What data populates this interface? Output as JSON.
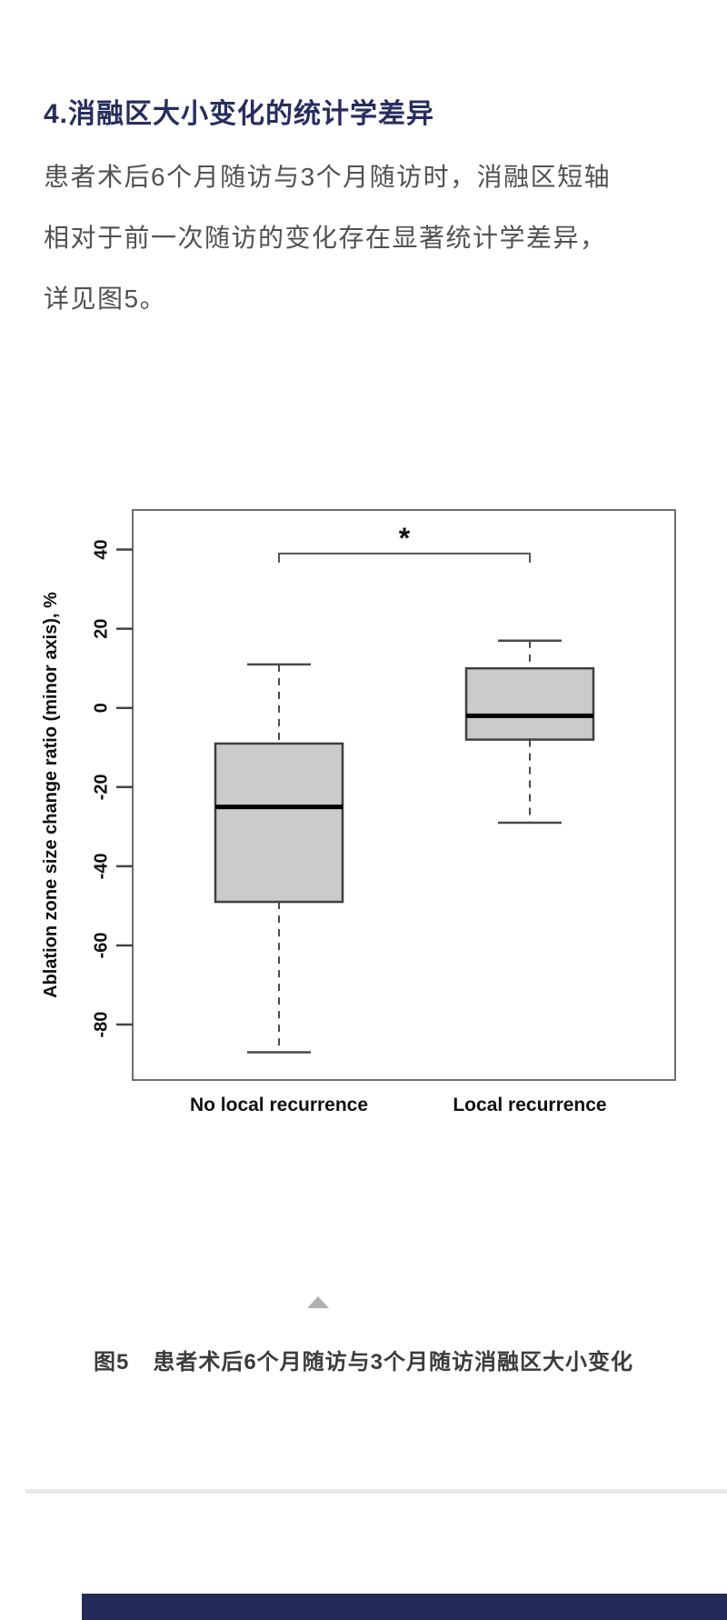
{
  "article": {
    "heading": "4.消融区大小变化的统计学差异",
    "paragraph_lines": [
      "患者术后6个月随访与3个月随访时，消融区短轴",
      "相对于前一次随访的变化存在显著统计学差异，",
      "详见图5。"
    ]
  },
  "figure": {
    "caption_label": "图5",
    "caption_text": "患者术后6个月随访与3个月随访消融区大小变化"
  },
  "icons": {
    "collapse_arrow": "triangle-up-icon"
  },
  "colors": {
    "accent_navy": "#272e5e",
    "body_text_gray": "#515151",
    "caption_gray": "#3c3c3c",
    "triangle_gray": "#b1b1b1",
    "bottom_bar_navy": "#232c58",
    "box_fill_gray": "#cbcbcb",
    "box_stroke": "#3f3f3f",
    "axis_stroke": "#6e6e6e"
  },
  "chart_data": {
    "type": "boxplot",
    "title": "",
    "xlabel": "",
    "ylabel": "Ablation zone size change ratio (minor axis), %",
    "ylim": [
      -94,
      50
    ],
    "yticks": [
      40,
      20,
      0,
      -20,
      -40,
      -60,
      -80
    ],
    "grid": false,
    "categories": [
      "No local recurrence",
      "Local recurrence"
    ],
    "series": [
      {
        "name": "No local recurrence",
        "whisker_low": -87,
        "q1": -49,
        "median": -25,
        "q3": -9,
        "whisker_high": 11
      },
      {
        "name": "Local recurrence",
        "whisker_low": -29,
        "q1": -8,
        "median": -2,
        "q3": 10,
        "whisker_high": 17
      }
    ],
    "significance": {
      "symbol": "*",
      "between": [
        "No local recurrence",
        "Local recurrence"
      ],
      "bar_y": 39
    },
    "box_fill": "#cbcbcb"
  }
}
